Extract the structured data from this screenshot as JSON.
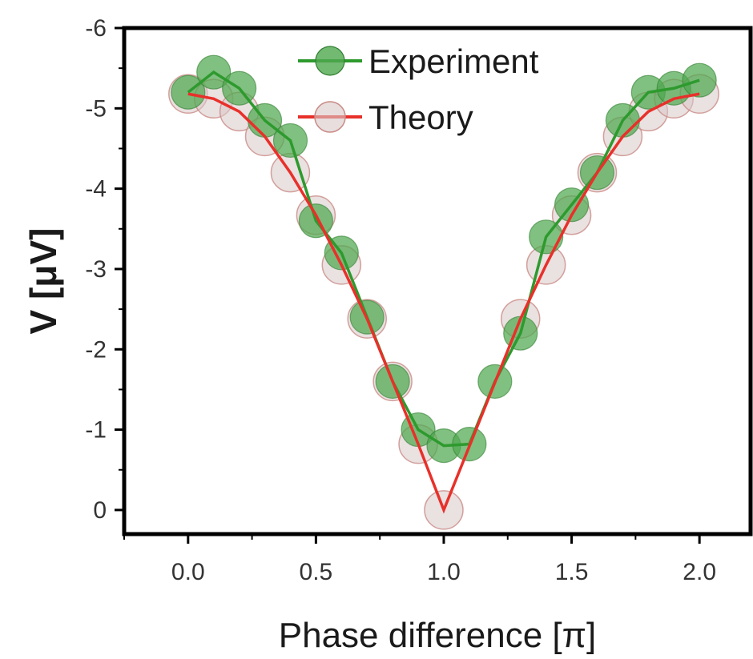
{
  "chart_data": {
    "type": "line",
    "xlabel": "Phase difference [π]",
    "ylabel": "V [μV]",
    "xlim": [
      -0.25,
      2.2
    ],
    "ylim": [
      0.3,
      -6
    ],
    "y_axis_inverted": true,
    "x_ticks": [
      "0.0",
      "0.5",
      "1.0",
      "1.5",
      "2.0"
    ],
    "x_tick_values": [
      0,
      0.5,
      1,
      1.5,
      2
    ],
    "y_ticks": [
      "0",
      "-1",
      "-2",
      "-3",
      "-4",
      "-5",
      "-6"
    ],
    "y_tick_values": [
      0,
      -1,
      -2,
      -3,
      -4,
      -5,
      -6
    ],
    "legend_position": "top-center",
    "grid": false,
    "series": [
      {
        "name": "Experiment",
        "color": "#2e9a2e",
        "marker_color": "#4fa84f",
        "x": [
          0,
          0.1,
          0.2,
          0.3,
          0.4,
          0.5,
          0.6,
          0.7,
          0.8,
          0.9,
          1.0,
          1.1,
          1.2,
          1.3,
          1.4,
          1.5,
          1.6,
          1.7,
          1.8,
          1.9,
          2.0
        ],
        "y": [
          -5.2,
          -5.45,
          -5.25,
          -4.85,
          -4.6,
          -3.6,
          -3.2,
          -2.4,
          -1.6,
          -1.0,
          -0.8,
          -0.82,
          -1.6,
          -2.2,
          -3.4,
          -3.8,
          -4.2,
          -4.85,
          -5.2,
          -5.25,
          -5.35
        ]
      },
      {
        "name": "Theory",
        "color": "#e8302a",
        "marker_color": "#d8c8c8",
        "x": [
          0,
          0.1,
          0.2,
          0.3,
          0.4,
          0.5,
          0.6,
          0.7,
          0.8,
          0.9,
          1.0,
          1.3,
          1.4,
          1.5,
          1.6,
          1.7,
          1.8,
          1.9,
          2.0
        ],
        "y": [
          -5.18,
          -5.12,
          -4.96,
          -4.65,
          -4.2,
          -3.67,
          -3.05,
          -2.38,
          -1.6,
          -0.82,
          0,
          -2.38,
          -3.05,
          -3.67,
          -4.2,
          -4.65,
          -4.96,
          -5.12,
          -5.18
        ]
      }
    ]
  }
}
